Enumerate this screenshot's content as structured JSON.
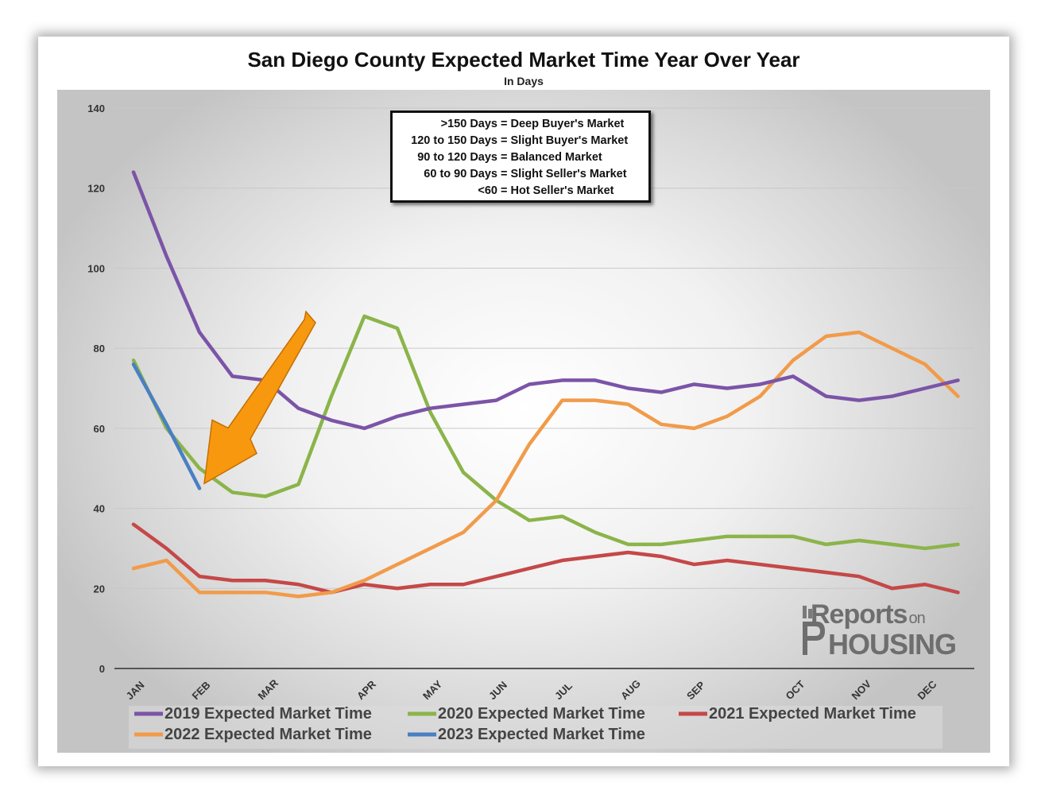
{
  "chart_data": {
    "type": "line",
    "title": "San Diego County Expected Market Time Year Over Year",
    "subtitle": "In Days",
    "ylim": [
      0,
      140
    ],
    "yticks": [
      0,
      20,
      40,
      60,
      80,
      100,
      120,
      140
    ],
    "month_labels": [
      "JAN",
      "FEB",
      "MAR",
      "APR",
      "MAY",
      "JUN",
      "JUL",
      "AUG",
      "SEP",
      "OCT",
      "NOV",
      "DEC"
    ],
    "x_points": 26,
    "series": [
      {
        "name": "2019 Expected Market Time",
        "color": "#7b54a7",
        "values": [
          124,
          103,
          84,
          73,
          72,
          65,
          62,
          60,
          63,
          65,
          66,
          67,
          71,
          72,
          72,
          70,
          69,
          71,
          70,
          71,
          73,
          68,
          67,
          68,
          70,
          72
        ]
      },
      {
        "name": "2020 Expected Market Time",
        "color": "#8bb44a",
        "values": [
          77,
          60,
          50,
          44,
          43,
          46,
          68,
          88,
          85,
          64,
          49,
          42,
          37,
          38,
          34,
          31,
          31,
          32,
          33,
          33,
          33,
          31,
          32,
          31,
          30,
          31
        ]
      },
      {
        "name": "2021 Expected Market Time",
        "color": "#c54848",
        "values": [
          36,
          30,
          23,
          22,
          22,
          21,
          19,
          21,
          20,
          21,
          21,
          23,
          25,
          27,
          28,
          29,
          28,
          26,
          27,
          26,
          25,
          24,
          23,
          20,
          21,
          19
        ]
      },
      {
        "name": "2022 Expected Market Time",
        "color": "#f19b4a",
        "values": [
          25,
          27,
          19,
          19,
          19,
          18,
          19,
          22,
          26,
          30,
          34,
          42,
          56,
          67,
          67,
          66,
          61,
          60,
          63,
          68,
          77,
          83,
          84,
          80,
          76,
          68
        ]
      },
      {
        "name": "2023 Expected Market Time",
        "color": "#4a7fc2",
        "values": [
          76,
          61,
          45
        ]
      }
    ],
    "annotation_arrow": {
      "color": "#f7980f",
      "points_to": "2023 FEB value"
    }
  },
  "key": [
    {
      "range": ">150 Days",
      "label": "= Deep Buyer's Market"
    },
    {
      "range": "120 to 150 Days",
      "label": "= Slight Buyer's Market"
    },
    {
      "range": "90 to 120 Days",
      "label": "= Balanced Market"
    },
    {
      "range": "60 to 90 Days",
      "label": "= Slight Seller's Market"
    },
    {
      "range": "<60",
      "label": "= Hot Seller's Market"
    }
  ],
  "logo": {
    "line1": "Reports",
    "line1_small": "on",
    "line2": "HOUSING"
  }
}
